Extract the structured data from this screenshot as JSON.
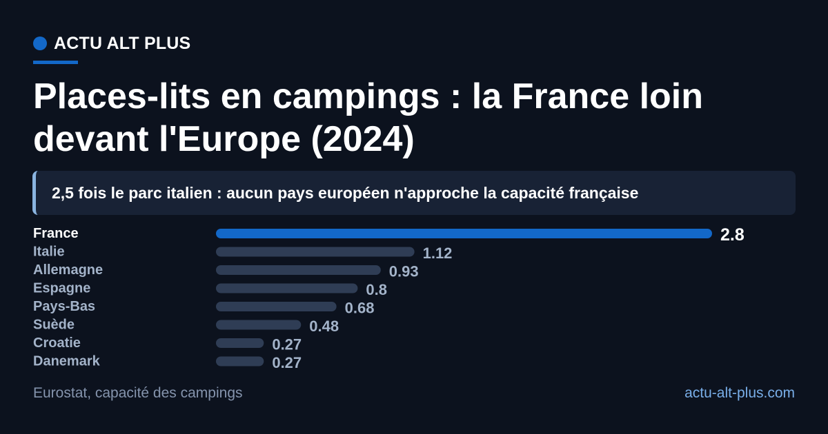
{
  "brand": {
    "name": "ACTU ALT PLUS"
  },
  "title": "Places-lits en campings : la France loin devant l'Europe (2024)",
  "subtitle": "2,5 fois le parc italien : aucun pays européen n'approche la capacité française",
  "colors": {
    "accent": "#1368c8",
    "bar_muted": "#2f3d55",
    "label_highlight": "#ffffff",
    "label_muted": "#a3b3c9",
    "background": "#0c121e"
  },
  "chart_data": {
    "type": "bar",
    "orientation": "horizontal",
    "categories": [
      "France",
      "Italie",
      "Allemagne",
      "Espagne",
      "Pays-Bas",
      "Suède",
      "Croatie",
      "Danemark"
    ],
    "values": [
      2.8,
      1.12,
      0.93,
      0.8,
      0.68,
      0.48,
      0.27,
      0.27
    ],
    "value_labels": [
      "2.8",
      "1.12",
      "0.93",
      "0.8",
      "0.68",
      "0.48",
      "0.27",
      "0.27"
    ],
    "highlight": "France",
    "xlim": [
      0,
      2.8
    ],
    "grid": false,
    "legend": "none"
  },
  "footer": {
    "source": "Eurostat, capacité des campings",
    "site": "actu-alt-plus.com"
  }
}
